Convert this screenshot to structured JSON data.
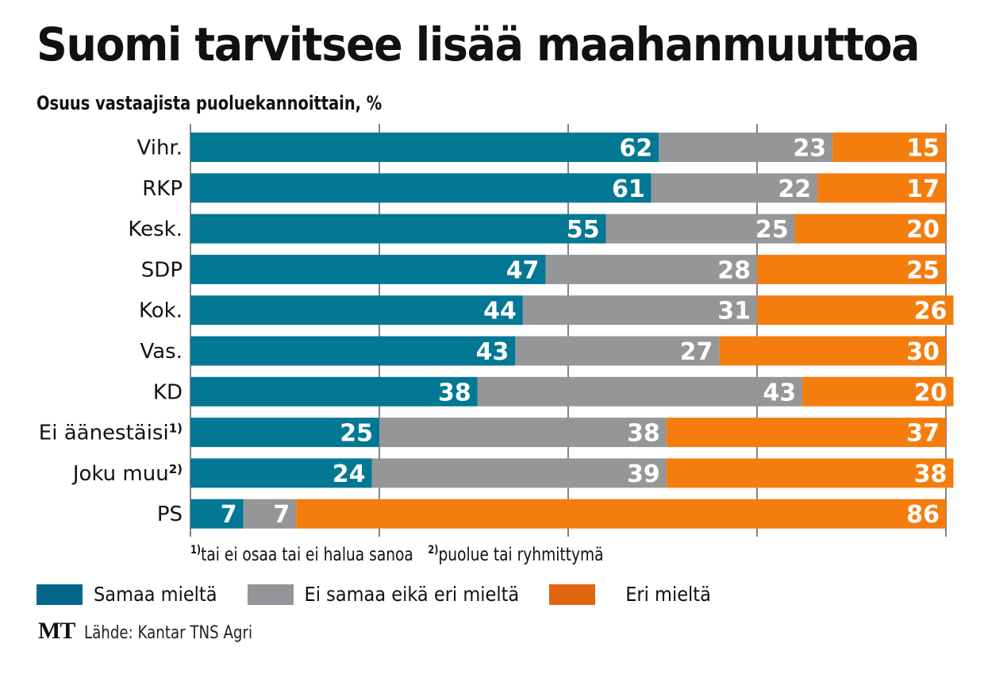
{
  "title": "Suomi tarvitsee lisää maahanmuuttoa",
  "subtitle": "Osuus vastaajista puoluekannoittain, %",
  "colors": {
    "agree": "#037894",
    "neutral": "#949698",
    "disagree": "#F47D0E",
    "legend_agree": "#05688A",
    "legend_neutral": "#939598",
    "legend_disagree": "#E0650E",
    "grid": "#333333"
  },
  "footnotes": [
    {
      "mark": "1)",
      "text": "tai ei osaa tai ei halua sanoa"
    },
    {
      "mark": "2)",
      "text": "puolue tai ryhmittymä"
    }
  ],
  "legend": [
    {
      "key": "agree",
      "label": "Samaa mieltä"
    },
    {
      "key": "neutral",
      "label": "Ei samaa eikä eri mieltä"
    },
    {
      "key": "disagree",
      "label": "Eri mieltä"
    }
  ],
  "source": {
    "logo": "MT",
    "text": "Lähde: Kantar TNS Agri"
  },
  "chart_data": {
    "type": "bar",
    "orientation": "horizontal",
    "stacked": true,
    "title": "Suomi tarvitsee lisää maahanmuuttoa",
    "subtitle": "Osuus vastaajista puoluekannoittain, %",
    "xlabel": "",
    "ylabel": "",
    "xlim": [
      0,
      100
    ],
    "gridlines_at": [
      0,
      25,
      50,
      75,
      100
    ],
    "grid": true,
    "tick_labels_shown": false,
    "legend_position": "bottom",
    "categories": [
      {
        "label": "Vihr.",
        "sup": ""
      },
      {
        "label": "RKP",
        "sup": ""
      },
      {
        "label": "Kesk.",
        "sup": ""
      },
      {
        "label": "SDP",
        "sup": ""
      },
      {
        "label": "Kok.",
        "sup": ""
      },
      {
        "label": "Vas.",
        "sup": ""
      },
      {
        "label": "KD",
        "sup": ""
      },
      {
        "label": "Ei äänestäisi",
        "sup": "1)"
      },
      {
        "label": "Joku muu",
        "sup": "2)"
      },
      {
        "label": "PS",
        "sup": ""
      }
    ],
    "series": [
      {
        "key": "agree",
        "name": "Samaa mieltä",
        "values": [
          62,
          61,
          55,
          47,
          44,
          43,
          38,
          25,
          24,
          7
        ]
      },
      {
        "key": "neutral",
        "name": "Ei samaa eikä eri mieltä",
        "values": [
          23,
          22,
          25,
          28,
          31,
          27,
          43,
          38,
          39,
          7
        ]
      },
      {
        "key": "disagree",
        "name": "Eri mieltä",
        "values": [
          15,
          17,
          20,
          25,
          26,
          30,
          20,
          37,
          38,
          86
        ]
      }
    ]
  }
}
